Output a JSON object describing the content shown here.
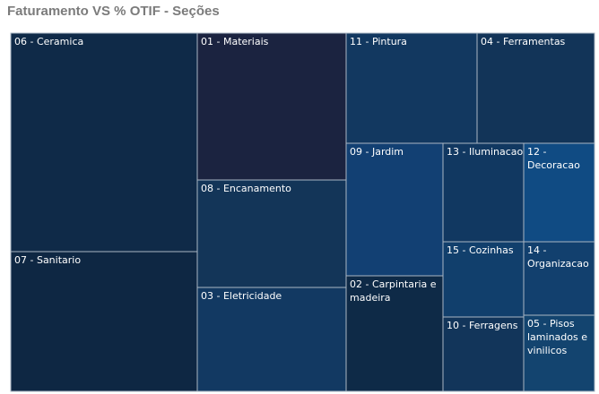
{
  "chart_data": {
    "type": "treemap",
    "title": "Faturamento VS % OTIF - Seções",
    "tiles": [
      {
        "label": "06 - Ceramica",
        "lines": [
          "06 - Ceramica"
        ],
        "color": "#0f2a48"
      },
      {
        "label": "07 - Sanitario",
        "lines": [
          "07 - Sanitario"
        ],
        "color": "#0e2743"
      },
      {
        "label": "01 - Materiais",
        "lines": [
          "01 - Materiais"
        ],
        "color": "#1b2340"
      },
      {
        "label": "08 - Encanamento",
        "lines": [
          "08 - Encanamento"
        ],
        "color": "#133558"
      },
      {
        "label": "03 - Eletricidade",
        "lines": [
          "03 - Eletricidade"
        ],
        "color": "#123962"
      },
      {
        "label": "11 - Pintura",
        "lines": [
          "11 - Pintura"
        ],
        "color": "#123860"
      },
      {
        "label": "04 - Ferramentas",
        "lines": [
          "04 - Ferramentas"
        ],
        "color": "#123458"
      },
      {
        "label": "09 - Jardim",
        "lines": [
          "09 - Jardim"
        ],
        "color": "#124073"
      },
      {
        "label": "02 - Carpintaria e madeira",
        "lines": [
          "02 - Carpintaria e",
          "madeira"
        ],
        "color": "#0e2a47"
      },
      {
        "label": "13 - Iluminacao",
        "lines": [
          "13 - Iluminacao"
        ],
        "color": "#113861"
      },
      {
        "label": "12 - Decoracao",
        "lines": [
          "12 -",
          "Decoracao"
        ],
        "color": "#104b83"
      },
      {
        "label": "15 - Cozinhas",
        "lines": [
          "15 - Cozinhas"
        ],
        "color": "#113f6c"
      },
      {
        "label": "14 - Organizacao",
        "lines": [
          "14 -",
          "Organizacao"
        ],
        "color": "#12406e"
      },
      {
        "label": "10 - Ferragens",
        "lines": [
          "10 - Ferragens"
        ],
        "color": "#12355a"
      },
      {
        "label": "05 - Pisos laminados e vinilicos",
        "lines": [
          "05 - Pisos",
          "laminados e",
          "vinilicos"
        ],
        "color": "#13446f"
      }
    ]
  }
}
